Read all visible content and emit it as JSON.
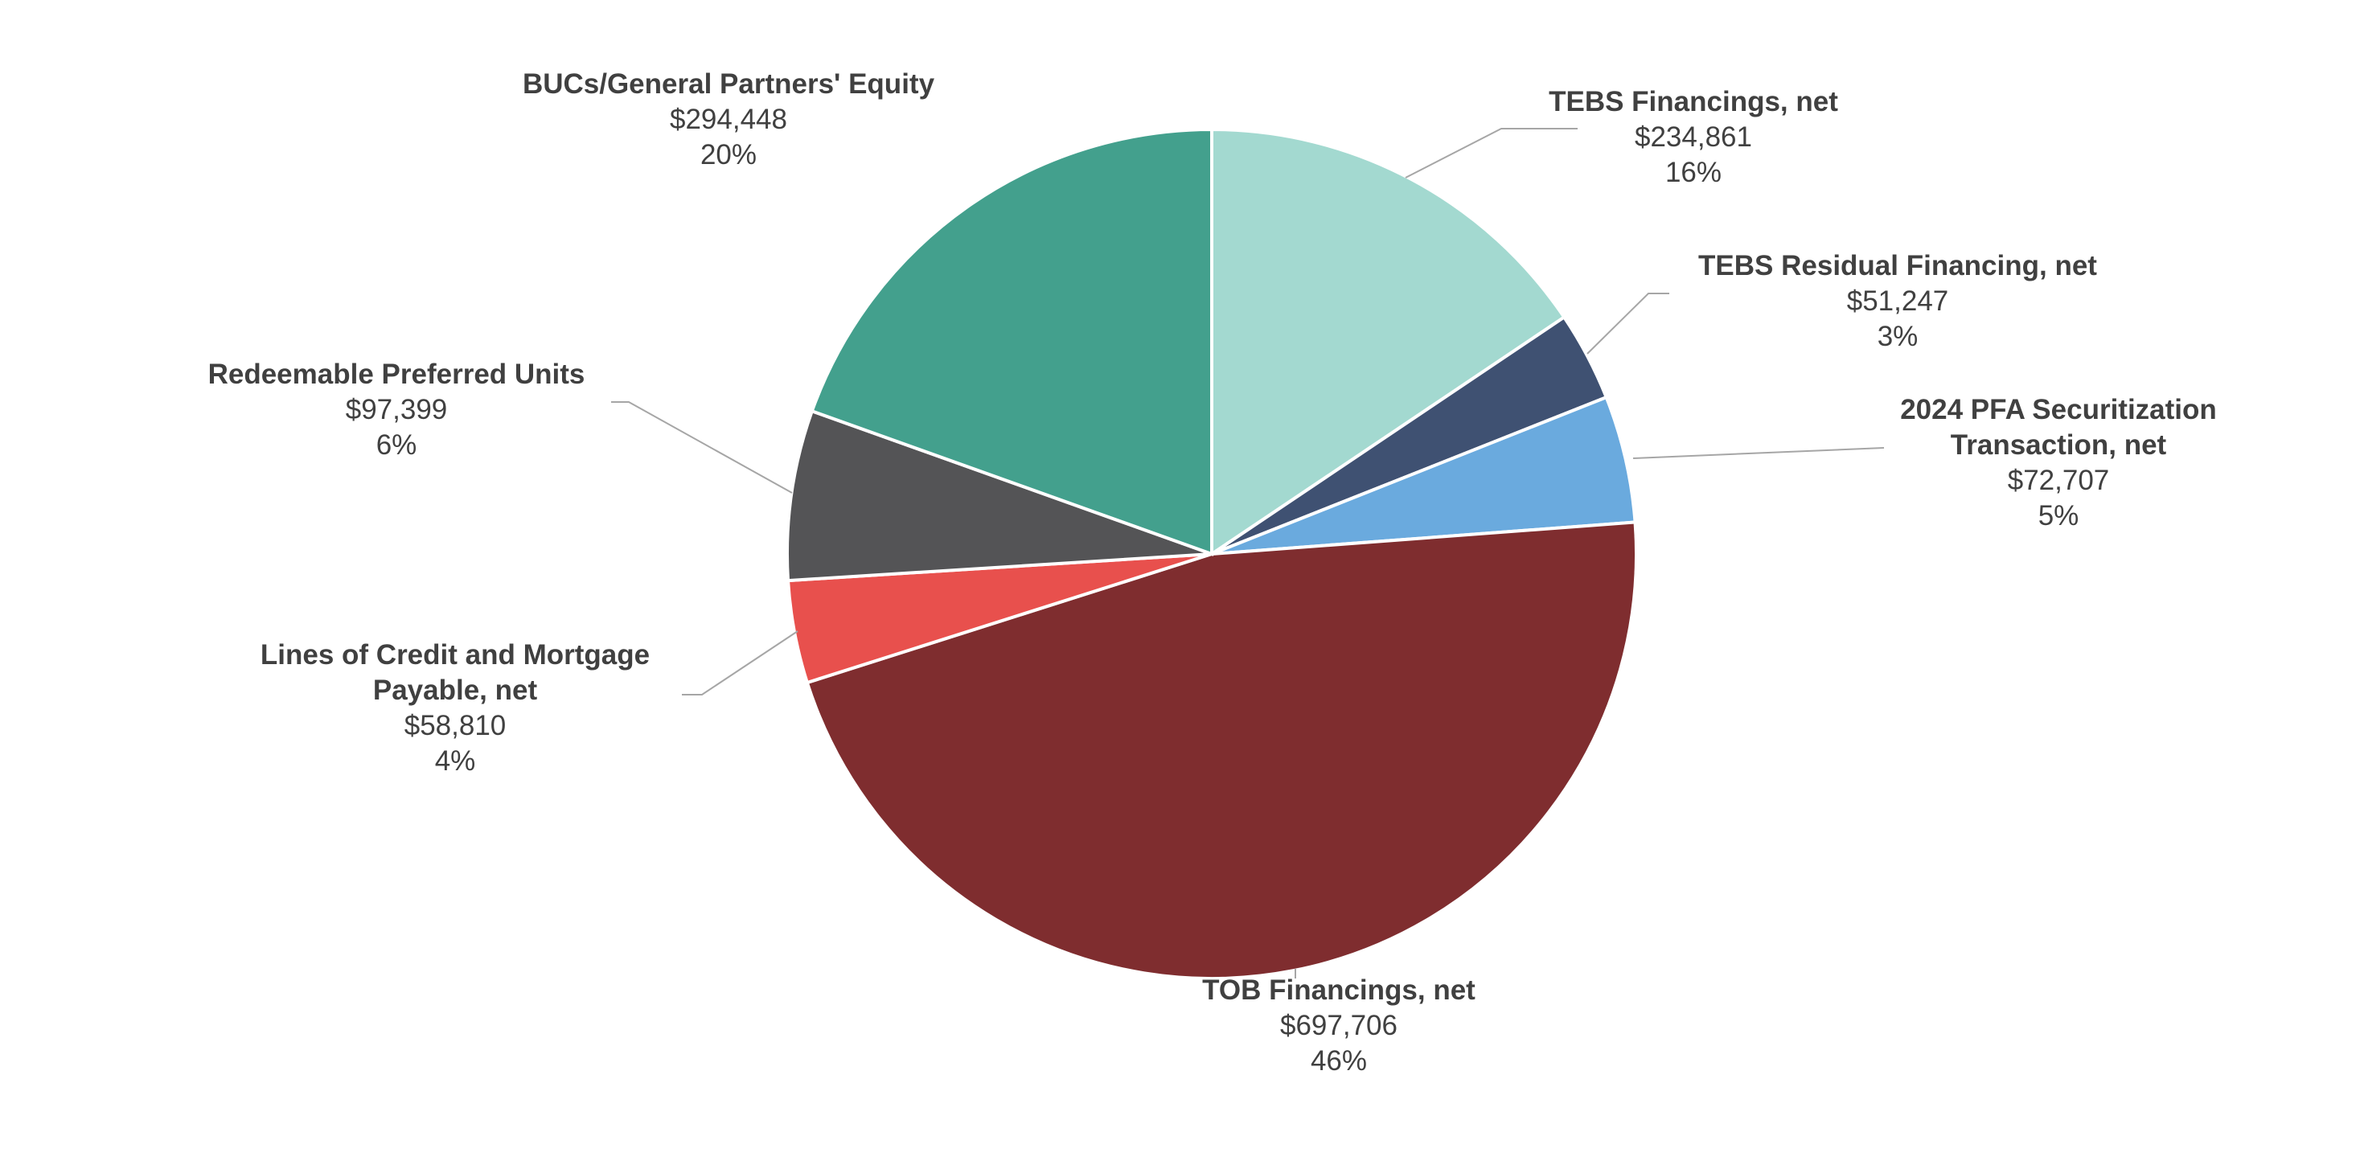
{
  "chart_data": {
    "type": "pie",
    "title": "",
    "start_angle_deg": 0,
    "direction": "clockwise",
    "slices": [
      {
        "id": "tebs-financings",
        "label_lines": [
          "TEBS Financings, net"
        ],
        "value_text": "$234,861",
        "pct_text": "16%",
        "value": 234861,
        "color": "#a3d9d0"
      },
      {
        "id": "tebs-residual",
        "label_lines": [
          "TEBS Residual Financing, net"
        ],
        "value_text": "$51,247",
        "pct_text": "3%",
        "value": 51247,
        "color": "#3f5172"
      },
      {
        "id": "pfa-securitization",
        "label_lines": [
          "2024 PFA Securitization",
          "Transaction, net"
        ],
        "value_text": "$72,707",
        "pct_text": "5%",
        "value": 72707,
        "color": "#6aaade"
      },
      {
        "id": "tob-financings",
        "label_lines": [
          "TOB Financings, net"
        ],
        "value_text": "$697,706",
        "pct_text": "46%",
        "value": 697706,
        "color": "#7f2d2f"
      },
      {
        "id": "lines-of-credit",
        "label_lines": [
          "Lines of Credit and Mortgage",
          "Payable, net"
        ],
        "value_text": "$58,810",
        "pct_text": "4%",
        "value": 58810,
        "color": "#e8504d"
      },
      {
        "id": "redeemable-preferred",
        "label_lines": [
          "Redeemable Preferred Units"
        ],
        "value_text": "$97,399",
        "pct_text": "6%",
        "value": 97399,
        "color": "#545456"
      },
      {
        "id": "bucs-equity",
        "label_lines": [
          "BUCs/General Partners' Equity"
        ],
        "value_text": "$294,448",
        "pct_text": "20%",
        "value": 294448,
        "color": "#43a08d"
      }
    ]
  }
}
